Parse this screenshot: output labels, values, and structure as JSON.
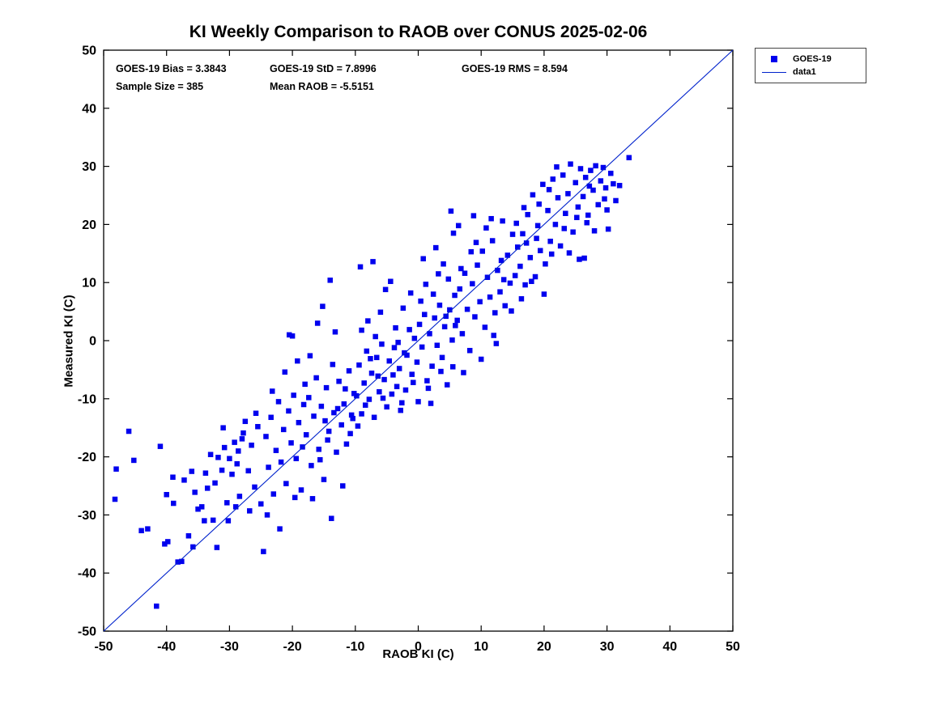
{
  "title": "KI Weekly Comparison to RAOB over CONUS 2025-02-06",
  "annotations": {
    "bias": "GOES-19 Bias = 3.3843",
    "std": "GOES-19 StD = 7.8996",
    "rms": "GOES-19 RMS = 8.594",
    "sample": "Sample Size = 385",
    "mean_raob": "Mean RAOB = -5.5151"
  },
  "legend": {
    "items": [
      {
        "label": "GOES-19",
        "type": "marker"
      },
      {
        "label": "data1",
        "type": "line"
      }
    ]
  },
  "colors": {
    "marker": "#0000ee",
    "line": "#0022cc",
    "axis": "#000000"
  },
  "chart_data": {
    "type": "scatter",
    "title": "KI Weekly Comparison to RAOB over CONUS 2025-02-06",
    "xlabel": "RAOB KI (C)",
    "ylabel": "Measured KI (C)",
    "xlim": [
      -50,
      50
    ],
    "ylim": [
      -50,
      50
    ],
    "xticks": [
      -50,
      -40,
      -30,
      -20,
      -10,
      0,
      10,
      20,
      30,
      40,
      50
    ],
    "yticks": [
      -50,
      -40,
      -30,
      -20,
      -10,
      0,
      10,
      20,
      30,
      40,
      50
    ],
    "grid": false,
    "legend_position": "outside-top-right",
    "stats": {
      "bias": 3.3843,
      "std": 7.8996,
      "rms": 8.594,
      "sample_size": 385,
      "mean_raob": -5.5151
    },
    "series": [
      {
        "name": "GOES-19",
        "type": "scatter",
        "marker": "square",
        "color": "#0000ee",
        "points": [
          [
            -48.2,
            -27.3
          ],
          [
            -48.0,
            -22.1
          ],
          [
            -46.0,
            -15.6
          ],
          [
            -45.2,
            -20.6
          ],
          [
            -43.0,
            -32.4
          ],
          [
            -41.6,
            -45.7
          ],
          [
            -41.0,
            -18.2
          ],
          [
            -40.3,
            -35.0
          ],
          [
            -39.8,
            -34.6
          ],
          [
            -38.2,
            -38.1
          ],
          [
            -37.6,
            -38.0
          ],
          [
            -37.2,
            -24.0
          ],
          [
            -36.5,
            -33.6
          ],
          [
            -36.0,
            -22.5
          ],
          [
            -38.9,
            -28.0
          ],
          [
            -44.0,
            -32.7
          ],
          [
            -40.0,
            -26.5
          ],
          [
            -39.0,
            -23.5
          ],
          [
            -35.5,
            -26.1
          ],
          [
            -35.0,
            -29.0
          ],
          [
            -34.4,
            -28.6
          ],
          [
            -34.0,
            -31.0
          ],
          [
            -33.5,
            -25.4
          ],
          [
            -33.0,
            -19.6
          ],
          [
            -32.6,
            -30.9
          ],
          [
            -32.0,
            -35.6
          ],
          [
            -31.8,
            -20.1
          ],
          [
            -31.2,
            -22.3
          ],
          [
            -30.8,
            -18.4
          ],
          [
            -30.4,
            -27.9
          ],
          [
            -30.0,
            -20.3
          ],
          [
            -29.6,
            -23.0
          ],
          [
            -29.2,
            -17.5
          ],
          [
            -28.8,
            -21.2
          ],
          [
            -28.4,
            -26.8
          ],
          [
            -28.0,
            -16.9
          ],
          [
            -31.0,
            -15.0
          ],
          [
            -29.0,
            -28.6
          ],
          [
            -30.2,
            -31.0
          ],
          [
            -35.8,
            -35.5
          ],
          [
            -28.6,
            -19.0
          ],
          [
            -33.8,
            -22.8
          ],
          [
            -32.3,
            -24.5
          ],
          [
            -27.5,
            -13.9
          ],
          [
            -27.0,
            -22.4
          ],
          [
            -26.5,
            -18.0
          ],
          [
            -26.0,
            -25.2
          ],
          [
            -25.5,
            -14.8
          ],
          [
            -25.0,
            -28.1
          ],
          [
            -24.6,
            -36.3
          ],
          [
            -24.2,
            -16.5
          ],
          [
            -23.8,
            -21.8
          ],
          [
            -23.4,
            -13.2
          ],
          [
            -23.0,
            -26.4
          ],
          [
            -22.6,
            -18.9
          ],
          [
            -22.2,
            -10.5
          ],
          [
            -21.8,
            -20.9
          ],
          [
            -21.4,
            -15.3
          ],
          [
            -21.0,
            -24.6
          ],
          [
            -20.6,
            -12.1
          ],
          [
            -20.2,
            -17.6
          ],
          [
            -19.8,
            -9.4
          ],
          [
            -19.4,
            -20.3
          ],
          [
            -19.0,
            -14.1
          ],
          [
            -18.6,
            -25.7
          ],
          [
            -18.2,
            -11.0
          ],
          [
            -20.0,
            0.8
          ],
          [
            -20.5,
            1.0
          ],
          [
            -19.2,
            -3.5
          ],
          [
            -21.2,
            -5.4
          ],
          [
            -24.0,
            -30.0
          ],
          [
            -26.8,
            -29.3
          ],
          [
            -22.0,
            -32.4
          ],
          [
            -18.4,
            -18.3
          ],
          [
            -25.8,
            -12.5
          ],
          [
            -23.2,
            -8.7
          ],
          [
            -19.6,
            -27.0
          ],
          [
            -27.8,
            -15.9
          ],
          [
            -17.8,
            -16.2
          ],
          [
            -17.4,
            -9.8
          ],
          [
            -17.0,
            -21.5
          ],
          [
            -16.6,
            -13.0
          ],
          [
            -16.2,
            -6.4
          ],
          [
            -15.8,
            -18.7
          ],
          [
            -15.4,
            -11.3
          ],
          [
            -15.0,
            -23.9
          ],
          [
            -14.6,
            -8.1
          ],
          [
            -14.2,
            -15.6
          ],
          [
            -13.8,
            -30.6
          ],
          [
            -13.4,
            -12.4
          ],
          [
            -13.0,
            -19.2
          ],
          [
            -12.6,
            -7.0
          ],
          [
            -12.2,
            -14.5
          ],
          [
            -11.8,
            -10.9
          ],
          [
            -11.4,
            -17.8
          ],
          [
            -11.0,
            -5.2
          ],
          [
            -10.6,
            -12.8
          ],
          [
            -10.2,
            -9.1
          ],
          [
            -15.2,
            5.9
          ],
          [
            -14.0,
            10.4
          ],
          [
            -16.0,
            3.0
          ],
          [
            -17.2,
            -2.6
          ],
          [
            -13.6,
            -4.1
          ],
          [
            -12.0,
            -25.0
          ],
          [
            -16.8,
            -27.2
          ],
          [
            -14.8,
            -13.8
          ],
          [
            -11.6,
            -8.3
          ],
          [
            -10.8,
            -16.0
          ],
          [
            -15.6,
            -20.5
          ],
          [
            -13.2,
            1.5
          ],
          [
            -12.8,
            -11.7
          ],
          [
            -18.0,
            -7.5
          ],
          [
            -10.4,
            -13.4
          ],
          [
            -14.4,
            -17.1
          ],
          [
            -9.8,
            -9.5
          ],
          [
            -9.4,
            -4.2
          ],
          [
            -9.0,
            -12.6
          ],
          [
            -8.6,
            -7.3
          ],
          [
            -8.2,
            -1.8
          ],
          [
            -7.8,
            -10.1
          ],
          [
            -7.4,
            -5.6
          ],
          [
            -7.0,
            -13.2
          ],
          [
            -6.6,
            -2.9
          ],
          [
            -6.2,
            -8.8
          ],
          [
            -5.8,
            -0.6
          ],
          [
            -5.4,
            -6.7
          ],
          [
            -5.0,
            -11.4
          ],
          [
            -4.6,
            -3.5
          ],
          [
            -4.2,
            -9.2
          ],
          [
            -3.8,
            -1.2
          ],
          [
            -3.4,
            -7.9
          ],
          [
            -3.0,
            -4.8
          ],
          [
            -2.6,
            -10.7
          ],
          [
            -2.2,
            -2.1
          ],
          [
            -9.2,
            12.7
          ],
          [
            -7.2,
            13.6
          ],
          [
            -8.0,
            3.4
          ],
          [
            -6.0,
            4.9
          ],
          [
            -4.4,
            10.2
          ],
          [
            -5.2,
            8.8
          ],
          [
            -3.6,
            2.2
          ],
          [
            -9.6,
            -14.7
          ],
          [
            -2.8,
            -12.0
          ],
          [
            -6.8,
            0.7
          ],
          [
            -4.0,
            -5.9
          ],
          [
            -8.4,
            -11.1
          ],
          [
            -2.4,
            5.6
          ],
          [
            -7.6,
            -3.1
          ],
          [
            -5.6,
            -9.9
          ],
          [
            -3.2,
            -0.3
          ],
          [
            -9.0,
            1.8
          ],
          [
            -6.4,
            -6.1
          ],
          [
            -2.0,
            -8.5
          ],
          [
            -1.8,
            -2.5
          ],
          [
            -1.4,
            1.9
          ],
          [
            -1.0,
            -5.8
          ],
          [
            -0.6,
            0.4
          ],
          [
            -0.2,
            -3.7
          ],
          [
            0.2,
            2.8
          ],
          [
            0.6,
            -1.1
          ],
          [
            1.0,
            4.5
          ],
          [
            1.4,
            -6.9
          ],
          [
            1.8,
            1.2
          ],
          [
            2.2,
            -4.4
          ],
          [
            2.6,
            3.9
          ],
          [
            3.0,
            -0.8
          ],
          [
            3.4,
            6.1
          ],
          [
            3.8,
            -2.9
          ],
          [
            4.2,
            2.4
          ],
          [
            4.6,
            -7.6
          ],
          [
            5.0,
            5.3
          ],
          [
            5.4,
            0.1
          ],
          [
            5.8,
            7.8
          ],
          [
            0.0,
            -10.5
          ],
          [
            2.0,
            -10.8
          ],
          [
            4.0,
            13.2
          ],
          [
            1.2,
            9.7
          ],
          [
            3.2,
            11.5
          ],
          [
            5.2,
            22.3
          ],
          [
            5.6,
            18.5
          ],
          [
            0.8,
            14.1
          ],
          [
            2.8,
            16.0
          ],
          [
            -1.2,
            8.2
          ],
          [
            4.8,
            10.6
          ],
          [
            1.6,
            -8.2
          ],
          [
            3.6,
            -5.3
          ],
          [
            0.4,
            6.8
          ],
          [
            2.4,
            8.0
          ],
          [
            4.4,
            4.2
          ],
          [
            5.9,
            2.6
          ],
          [
            -0.8,
            -7.2
          ],
          [
            5.5,
            -4.5
          ],
          [
            6.2,
            3.5
          ],
          [
            6.6,
            8.9
          ],
          [
            7.0,
            1.2
          ],
          [
            7.4,
            11.6
          ],
          [
            7.8,
            5.4
          ],
          [
            8.2,
            -1.7
          ],
          [
            8.6,
            9.8
          ],
          [
            9.0,
            4.1
          ],
          [
            9.4,
            13.0
          ],
          [
            9.8,
            6.7
          ],
          [
            10.2,
            15.4
          ],
          [
            10.6,
            2.3
          ],
          [
            11.0,
            10.9
          ],
          [
            11.4,
            7.5
          ],
          [
            11.8,
            17.2
          ],
          [
            12.2,
            4.8
          ],
          [
            12.6,
            12.1
          ],
          [
            13.0,
            8.4
          ],
          [
            13.4,
            20.6
          ],
          [
            13.8,
            6.0
          ],
          [
            14.2,
            14.7
          ],
          [
            14.6,
            9.9
          ],
          [
            15.0,
            18.3
          ],
          [
            15.4,
            11.2
          ],
          [
            15.8,
            16.1
          ],
          [
            6.4,
            19.8
          ],
          [
            8.8,
            21.5
          ],
          [
            12.0,
            0.9
          ],
          [
            10.0,
            -3.2
          ],
          [
            7.2,
            -5.5
          ],
          [
            13.2,
            13.8
          ],
          [
            9.2,
            16.9
          ],
          [
            11.6,
            21.0
          ],
          [
            14.8,
            5.1
          ],
          [
            6.8,
            12.4
          ],
          [
            15.6,
            20.2
          ],
          [
            12.4,
            -0.5
          ],
          [
            8.4,
            15.3
          ],
          [
            10.8,
            19.4
          ],
          [
            13.6,
            10.5
          ],
          [
            16.2,
            12.8
          ],
          [
            16.6,
            18.4
          ],
          [
            17.0,
            9.6
          ],
          [
            17.4,
            21.7
          ],
          [
            17.8,
            14.3
          ],
          [
            18.2,
            25.1
          ],
          [
            18.6,
            11.0
          ],
          [
            19.0,
            19.8
          ],
          [
            19.4,
            15.5
          ],
          [
            19.8,
            26.9
          ],
          [
            20.2,
            13.2
          ],
          [
            20.6,
            22.4
          ],
          [
            21.0,
            17.1
          ],
          [
            21.4,
            27.8
          ],
          [
            21.8,
            20.0
          ],
          [
            22.2,
            24.6
          ],
          [
            22.6,
            16.3
          ],
          [
            23.0,
            28.5
          ],
          [
            23.4,
            21.9
          ],
          [
            23.8,
            25.3
          ],
          [
            24.2,
            30.4
          ],
          [
            24.6,
            18.7
          ],
          [
            25.0,
            27.2
          ],
          [
            25.4,
            23.0
          ],
          [
            25.8,
            29.6
          ],
          [
            16.4,
            7.2
          ],
          [
            18.0,
            10.2
          ],
          [
            20.0,
            8.0
          ],
          [
            17.2,
            16.8
          ],
          [
            19.2,
            23.5
          ],
          [
            21.2,
            14.9
          ],
          [
            23.2,
            19.3
          ],
          [
            25.2,
            21.2
          ],
          [
            16.8,
            22.9
          ],
          [
            24.0,
            15.1
          ],
          [
            22.0,
            29.9
          ],
          [
            18.8,
            17.6
          ],
          [
            20.8,
            26.0
          ],
          [
            25.6,
            14.0
          ],
          [
            26.2,
            24.8
          ],
          [
            26.6,
            28.1
          ],
          [
            27.0,
            21.6
          ],
          [
            27.4,
            29.3
          ],
          [
            27.8,
            25.9
          ],
          [
            28.2,
            30.1
          ],
          [
            28.6,
            23.4
          ],
          [
            29.0,
            27.5
          ],
          [
            29.4,
            29.8
          ],
          [
            29.8,
            26.3
          ],
          [
            30.2,
            19.2
          ],
          [
            30.6,
            28.8
          ],
          [
            31.0,
            27.0
          ],
          [
            31.4,
            24.1
          ],
          [
            33.5,
            31.5
          ],
          [
            26.4,
            14.2
          ],
          [
            28.0,
            18.9
          ],
          [
            30.0,
            22.5
          ],
          [
            32.0,
            26.7
          ],
          [
            27.2,
            26.6
          ],
          [
            29.6,
            24.4
          ],
          [
            26.8,
            20.3
          ]
        ]
      },
      {
        "name": "data1",
        "type": "line",
        "color": "#0022cc",
        "points": [
          [
            -50,
            -50
          ],
          [
            50,
            50
          ]
        ]
      }
    ]
  }
}
